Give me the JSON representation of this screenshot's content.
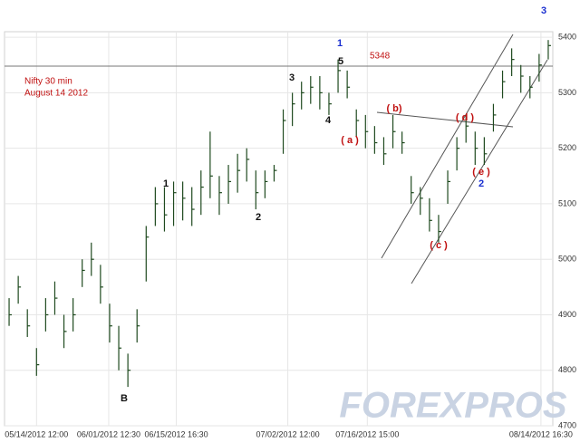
{
  "chart_data": {
    "type": "ohlc",
    "title": "Nifty 30 min",
    "subtitle": "August 14 2012",
    "color": "#1f4a1f",
    "grid": true,
    "xlim": [
      0,
      60
    ],
    "xticks": [
      {
        "value": 3.5,
        "label": "05/14/2012 12:00"
      },
      {
        "value": 11.4,
        "label": "06/01/2012 12:30"
      },
      {
        "value": 18.8,
        "label": "06/15/2012 16:30"
      },
      {
        "value": 31,
        "label": "07/02/2012 12:00"
      },
      {
        "value": 39.7,
        "label": "07/16/2012 15:00"
      },
      {
        "value": 58.7,
        "label": "08/14/2012 16:30"
      }
    ],
    "ylim": [
      4700,
      5410
    ],
    "yticks": [
      4700,
      4800,
      4900,
      5000,
      5100,
      5200,
      5300,
      5400
    ],
    "reference_line": 5348,
    "high": [
      4930,
      4970,
      4910,
      4840,
      4930,
      4960,
      4900,
      4930,
      5000,
      5030,
      4990,
      4920,
      4880,
      4830,
      4910,
      5060,
      5130,
      5130,
      5140,
      5140,
      5130,
      5160,
      5230,
      5150,
      5170,
      5190,
      5200,
      5160,
      5160,
      5170,
      5270,
      5300,
      5320,
      5330,
      5330,
      5300,
      5360,
      5340,
      5270,
      5260,
      5240,
      5220,
      5260,
      5230,
      5150,
      5130,
      5110,
      5080,
      5160,
      5220,
      5260,
      5230,
      5220,
      5280,
      5340,
      5380,
      5350,
      5330,
      5370,
      5395
    ],
    "low": [
      4880,
      4920,
      4860,
      4790,
      4870,
      4900,
      4840,
      4870,
      4950,
      4970,
      4920,
      4850,
      4800,
      4770,
      4850,
      4960,
      5060,
      5050,
      5060,
      5070,
      5060,
      5080,
      5110,
      5080,
      5100,
      5120,
      5140,
      5090,
      5110,
      5140,
      5190,
      5240,
      5270,
      5280,
      5270,
      5260,
      5300,
      5290,
      5220,
      5200,
      5190,
      5170,
      5200,
      5190,
      5100,
      5080,
      5050,
      5030,
      5100,
      5160,
      5210,
      5170,
      5170,
      5230,
      5290,
      5330,
      5300,
      5290,
      5320,
      5360
    ],
    "close": [
      4900,
      4950,
      4880,
      4810,
      4900,
      4930,
      4870,
      4900,
      4980,
      5000,
      4950,
      4880,
      4840,
      4800,
      4880,
      5040,
      5100,
      5080,
      5120,
      5110,
      5090,
      5130,
      5150,
      5120,
      5140,
      5160,
      5180,
      5120,
      5140,
      5160,
      5250,
      5280,
      5300,
      5310,
      5300,
      5280,
      5340,
      5310,
      5250,
      5230,
      5210,
      5190,
      5230,
      5210,
      5120,
      5110,
      5070,
      5050,
      5140,
      5200,
      5240,
      5200,
      5190,
      5260,
      5320,
      5360,
      5330,
      5310,
      5350,
      5385
    ],
    "annotations": [
      {
        "text": "3",
        "color": "#1a2fd0"
      },
      {
        "text": "1",
        "color": "#1a2fd0"
      },
      {
        "text": "5",
        "color": "#111111"
      },
      {
        "text": "3",
        "color": "#111111"
      },
      {
        "text": "4",
        "color": "#111111"
      },
      {
        "text": "( b)",
        "color": "#c01010"
      },
      {
        "text": "( a )",
        "color": "#c01010"
      },
      {
        "text": "( d )",
        "color": "#c01010"
      },
      {
        "text": "( e )",
        "color": "#c01010"
      },
      {
        "text": "2",
        "color": "#1a2fd0"
      },
      {
        "text": "1",
        "color": "#111111"
      },
      {
        "text": "2",
        "color": "#111111"
      },
      {
        "text": "( c )",
        "color": "#c01010"
      },
      {
        "text": "B",
        "color": "#111111"
      }
    ],
    "watermark": "FOREXPROS"
  }
}
